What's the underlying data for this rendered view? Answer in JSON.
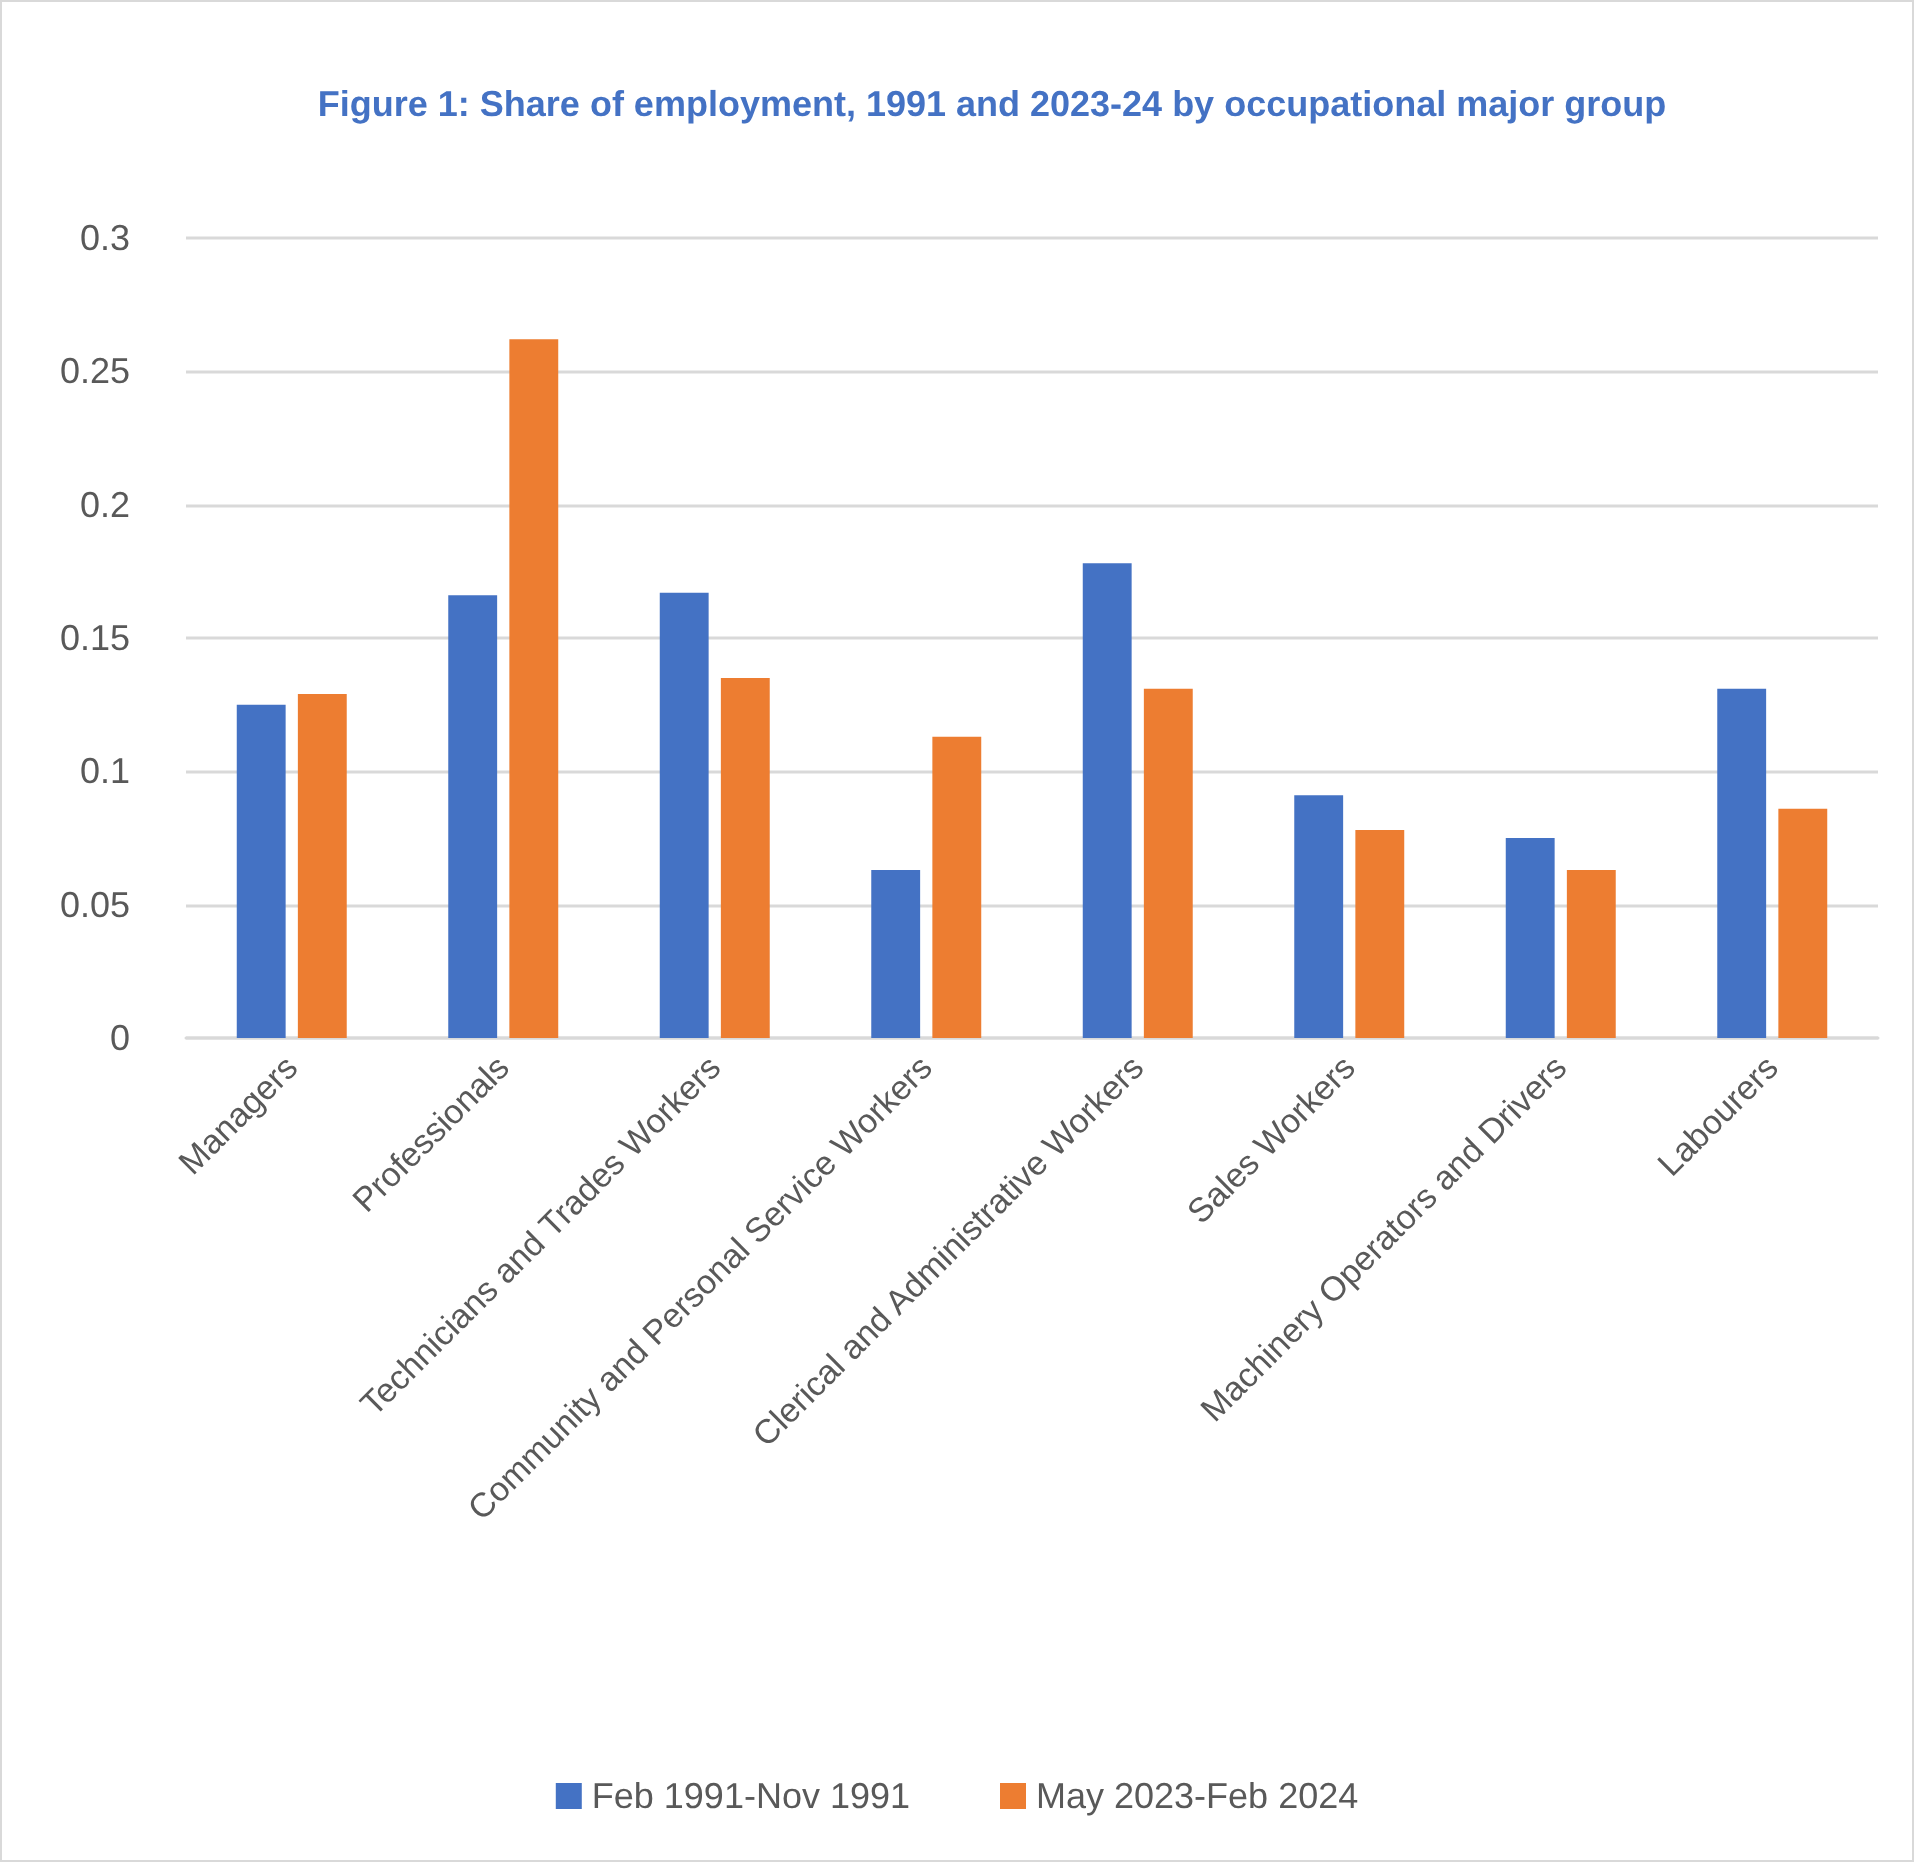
{
  "chart_data": {
    "type": "bar",
    "title": "Figure 1: Share of employment, 1991 and 2023-24 by occupational major group",
    "categories": [
      "Managers",
      "Professionals",
      "Technicians and Trades Workers",
      "Community and Personal Service Workers",
      "Clerical and Administrative Workers",
      "Sales Workers",
      "Machinery Operators and Drivers",
      "Labourers"
    ],
    "series": [
      {
        "name": "Feb 1991-Nov 1991",
        "color": "#4472c4",
        "values": [
          0.125,
          0.166,
          0.167,
          0.063,
          0.178,
          0.091,
          0.075,
          0.131
        ]
      },
      {
        "name": "May 2023-Feb 2024",
        "color": "#ed7d31",
        "values": [
          0.129,
          0.262,
          0.135,
          0.113,
          0.131,
          0.078,
          0.063,
          0.086
        ]
      }
    ],
    "ylim": [
      0,
      0.3
    ],
    "yticks": [
      0,
      0.05,
      0.1,
      0.15,
      0.2,
      0.25,
      0.3
    ],
    "grid": "y",
    "legend": "bottom"
  }
}
